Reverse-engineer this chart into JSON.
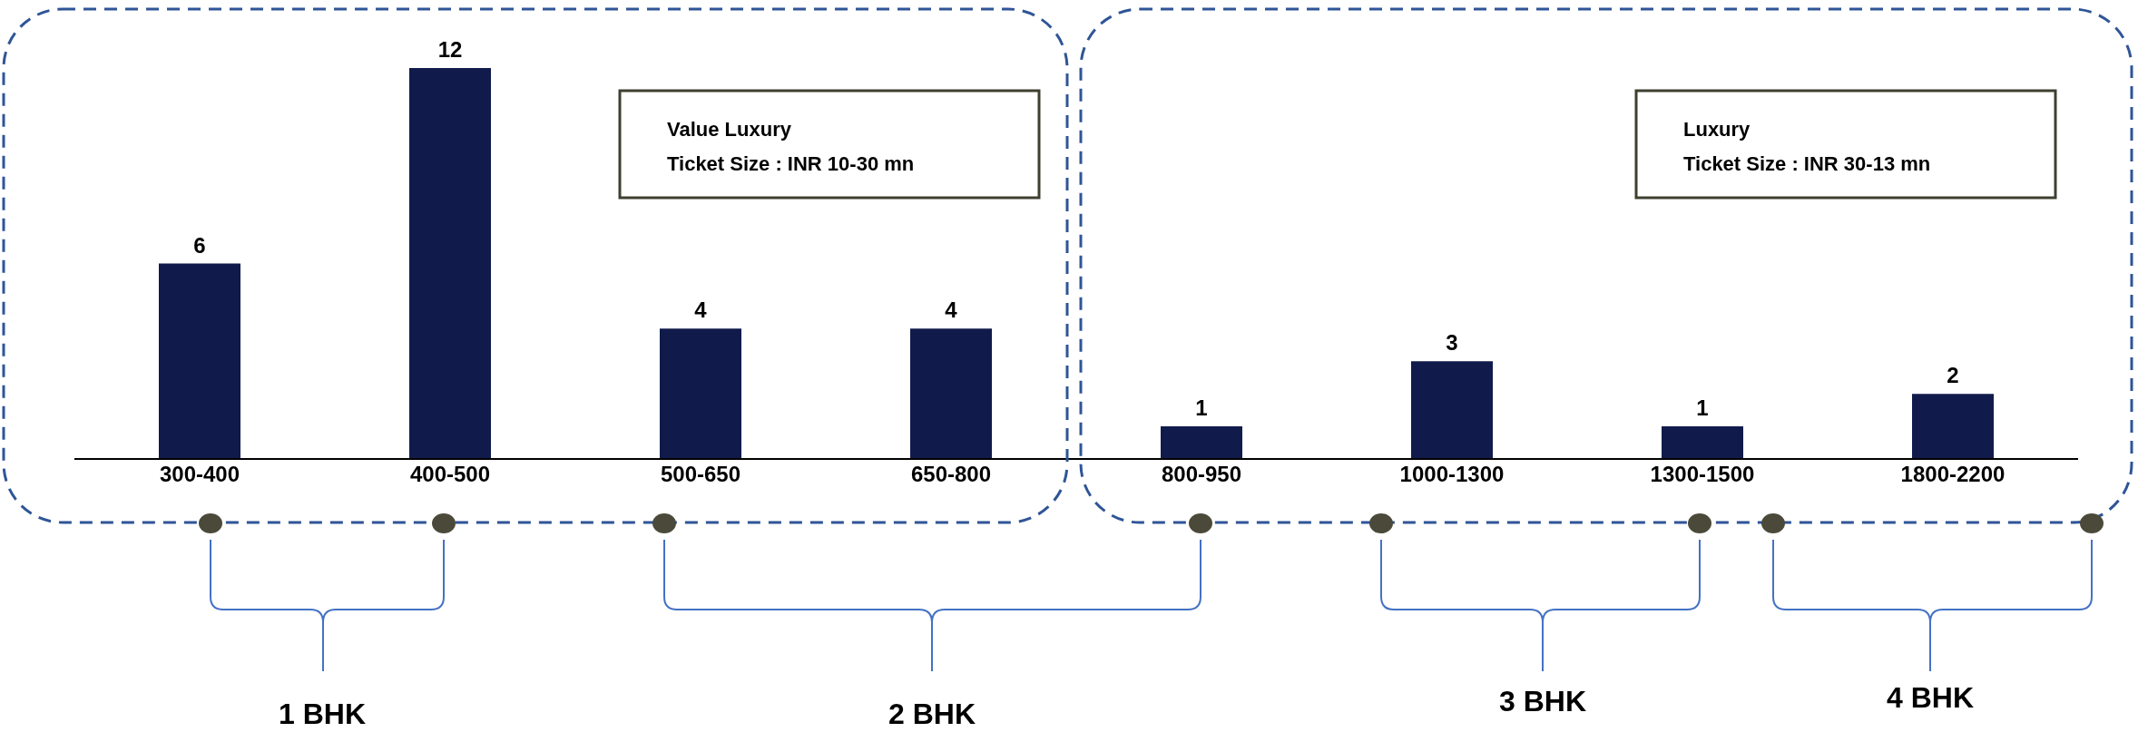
{
  "chart_data": {
    "type": "bar",
    "categories": [
      "300-400",
      "400-500",
      "500-650",
      "650-800",
      "800-950",
      "1000-1300",
      "1300-1500",
      "1800-2200"
    ],
    "values": [
      6,
      12,
      4,
      4,
      1,
      3,
      1,
      2
    ],
    "color": "#111b4b",
    "data_labels": true,
    "annotations": [
      "Value Luxury",
      "Ticket Size : INR 10-30 mn",
      "Luxury",
      "Ticket Size : INR 30-13 mn",
      "1 BHK",
      "2 BHK",
      "3 BHK",
      "4 BHK"
    ]
  }
}
